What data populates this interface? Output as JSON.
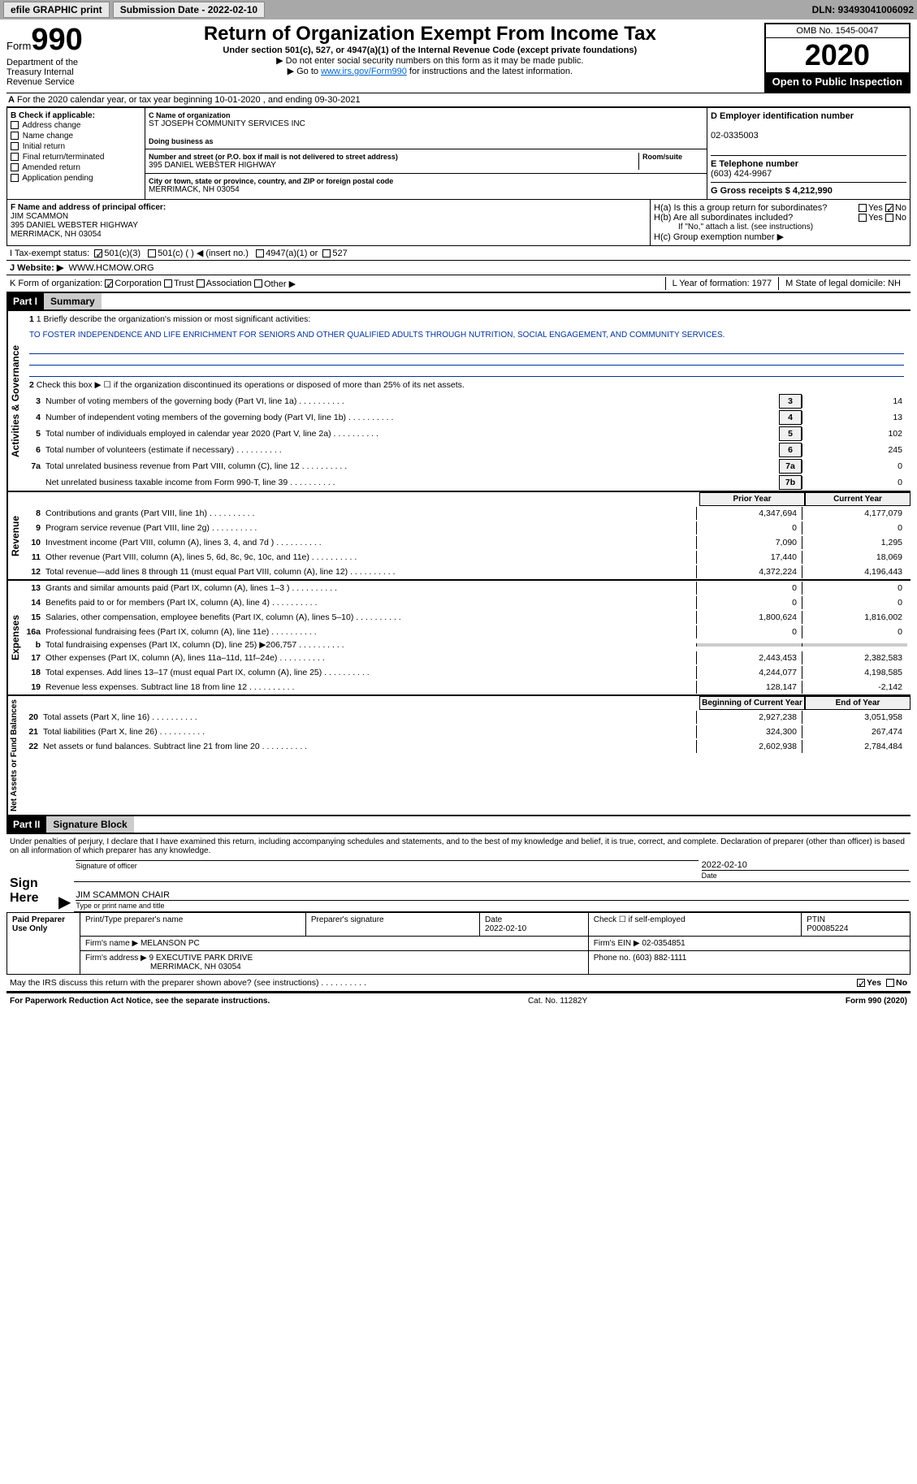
{
  "topbar": {
    "efile_label": "efile GRAPHIC print",
    "submission_label": "Submission Date - 2022-02-10",
    "dln_label": "DLN: 93493041006092"
  },
  "header": {
    "form_label": "Form",
    "form_number": "990",
    "title": "Return of Organization Exempt From Income Tax",
    "subtitle": "Under section 501(c), 527, or 4947(a)(1) of the Internal Revenue Code (except private foundations)",
    "instr1": "▶ Do not enter social security numbers on this form as it may be made public.",
    "instr2_prefix": "▶ Go to ",
    "instr2_link": "www.irs.gov/Form990",
    "instr2_suffix": " for instructions and the latest information.",
    "omb": "OMB No. 1545-0047",
    "year": "2020",
    "open_public": "Open to Public Inspection",
    "dept": "Department of the Treasury Internal Revenue Service"
  },
  "line_a": "For the 2020 calendar year, or tax year beginning 10-01-2020   , and ending 09-30-2021",
  "section_b": {
    "header": "B Check if applicable:",
    "items": [
      "Address change",
      "Name change",
      "Initial return",
      "Final return/terminated",
      "Amended return",
      "Application pending"
    ]
  },
  "section_c": {
    "name_label": "C Name of organization",
    "name": "ST JOSEPH COMMUNITY SERVICES INC",
    "dba_label": "Doing business as",
    "addr_label": "Number and street (or P.O. box if mail is not delivered to street address)",
    "room_label": "Room/suite",
    "addr": "395 DANIEL WEBSTER HIGHWAY",
    "city_label": "City or town, state or province, country, and ZIP or foreign postal code",
    "city": "MERRIMACK, NH  03054"
  },
  "section_d": {
    "label": "D Employer identification number",
    "value": "02-0335003"
  },
  "section_e": {
    "label": "E Telephone number",
    "value": "(603) 424-9967"
  },
  "section_g": {
    "label": "G Gross receipts $ 4,212,990"
  },
  "section_f": {
    "label": "F Name and address of principal officer:",
    "name": "JIM SCAMMON",
    "addr1": "395 DANIEL WEBSTER HIGHWAY",
    "addr2": "MERRIMACK, NH  03054"
  },
  "section_h": {
    "ha": "H(a)  Is this a group return for subordinates?",
    "hb": "H(b)  Are all subordinates included?",
    "hb_note": "If \"No,\" attach a list. (see instructions)",
    "hc": "H(c)  Group exemption number ▶",
    "yes": "Yes",
    "no": "No"
  },
  "line_i": {
    "label": "I    Tax-exempt status:",
    "opts": [
      "501(c)(3)",
      "501(c) (  ) ◀ (insert no.)",
      "4947(a)(1) or",
      "527"
    ]
  },
  "line_j": {
    "label": "J   Website: ▶",
    "value": "WWW.HCMOW.ORG"
  },
  "line_k": {
    "label": "K Form of organization:",
    "opts": [
      "Corporation",
      "Trust",
      "Association",
      "Other ▶"
    ]
  },
  "line_l": {
    "label": "L Year of formation: 1977"
  },
  "line_m": {
    "label": "M State of legal domicile: NH"
  },
  "part1": {
    "header": "Part I",
    "title": "Summary",
    "q1_label": "1  Briefly describe the organization's mission or most significant activities:",
    "q1_text": "TO FOSTER INDEPENDENCE AND LIFE ENRICHMENT FOR SENIORS AND OTHER QUALIFIED ADULTS THROUGH NUTRITION, SOCIAL ENGAGEMENT, AND COMMUNITY SERVICES.",
    "q2": "Check this box ▶ ☐  if the organization discontinued its operations or disposed of more than 25% of its net assets.",
    "sections": {
      "governance": "Activities & Governance",
      "revenue": "Revenue",
      "expenses": "Expenses",
      "netassets": "Net Assets or Fund Balances"
    },
    "simple_rows": [
      {
        "n": "3",
        "label": "Number of voting members of the governing body (Part VI, line 1a)",
        "box": "3",
        "val": "14"
      },
      {
        "n": "4",
        "label": "Number of independent voting members of the governing body (Part VI, line 1b)",
        "box": "4",
        "val": "13"
      },
      {
        "n": "5",
        "label": "Total number of individuals employed in calendar year 2020 (Part V, line 2a)",
        "box": "5",
        "val": "102"
      },
      {
        "n": "6",
        "label": "Total number of volunteers (estimate if necessary)",
        "box": "6",
        "val": "245"
      },
      {
        "n": "7a",
        "label": "Total unrelated business revenue from Part VIII, column (C), line 12",
        "box": "7a",
        "val": "0"
      },
      {
        "n": "",
        "label": "Net unrelated business taxable income from Form 990-T, line 39",
        "box": "7b",
        "val": "0"
      }
    ],
    "col_headers": {
      "prior": "Prior Year",
      "current": "Current Year",
      "begin": "Beginning of Current Year",
      "end": "End of Year"
    },
    "revenue_rows": [
      {
        "n": "8",
        "label": "Contributions and grants (Part VIII, line 1h)",
        "p": "4,347,694",
        "c": "4,177,079"
      },
      {
        "n": "9",
        "label": "Program service revenue (Part VIII, line 2g)",
        "p": "0",
        "c": "0"
      },
      {
        "n": "10",
        "label": "Investment income (Part VIII, column (A), lines 3, 4, and 7d )",
        "p": "7,090",
        "c": "1,295"
      },
      {
        "n": "11",
        "label": "Other revenue (Part VIII, column (A), lines 5, 6d, 8c, 9c, 10c, and 11e)",
        "p": "17,440",
        "c": "18,069"
      },
      {
        "n": "12",
        "label": "Total revenue—add lines 8 through 11 (must equal Part VIII, column (A), line 12)",
        "p": "4,372,224",
        "c": "4,196,443"
      }
    ],
    "expense_rows": [
      {
        "n": "13",
        "label": "Grants and similar amounts paid (Part IX, column (A), lines 1–3 )",
        "p": "0",
        "c": "0"
      },
      {
        "n": "14",
        "label": "Benefits paid to or for members (Part IX, column (A), line 4)",
        "p": "0",
        "c": "0"
      },
      {
        "n": "15",
        "label": "Salaries, other compensation, employee benefits (Part IX, column (A), lines 5–10)",
        "p": "1,800,624",
        "c": "1,816,002"
      },
      {
        "n": "16a",
        "label": "Professional fundraising fees (Part IX, column (A), line 11e)",
        "p": "0",
        "c": "0"
      },
      {
        "n": "b",
        "label": "Total fundraising expenses (Part IX, column (D), line 25) ▶206,757",
        "p": "",
        "c": "",
        "shaded": true
      },
      {
        "n": "17",
        "label": "Other expenses (Part IX, column (A), lines 11a–11d, 11f–24e)",
        "p": "2,443,453",
        "c": "2,382,583"
      },
      {
        "n": "18",
        "label": "Total expenses. Add lines 13–17 (must equal Part IX, column (A), line 25)",
        "p": "4,244,077",
        "c": "4,198,585"
      },
      {
        "n": "19",
        "label": "Revenue less expenses. Subtract line 18 from line 12",
        "p": "128,147",
        "c": "-2,142"
      }
    ],
    "asset_rows": [
      {
        "n": "20",
        "label": "Total assets (Part X, line 16)",
        "p": "2,927,238",
        "c": "3,051,958"
      },
      {
        "n": "21",
        "label": "Total liabilities (Part X, line 26)",
        "p": "324,300",
        "c": "267,474"
      },
      {
        "n": "22",
        "label": "Net assets or fund balances. Subtract line 21 from line 20",
        "p": "2,602,938",
        "c": "2,784,484"
      }
    ]
  },
  "part2": {
    "header": "Part II",
    "title": "Signature Block",
    "declaration": "Under penalties of perjury, I declare that I have examined this return, including accompanying schedules and statements, and to the best of my knowledge and belief, it is true, correct, and complete. Declaration of preparer (other than officer) is based on all information of which preparer has any knowledge."
  },
  "sign": {
    "label": "Sign Here",
    "sig_label": "Signature of officer",
    "date_label": "Date",
    "date": "2022-02-10",
    "name": "JIM SCAMMON CHAIR",
    "name_label": "Type or print name and title"
  },
  "preparer": {
    "label": "Paid Preparer Use Only",
    "headers": [
      "Print/Type preparer's name",
      "Preparer's signature",
      "Date",
      "Check ☐ if self-employed",
      "PTIN"
    ],
    "date": "2022-02-10",
    "ptin": "P00085224",
    "firm_label": "Firm's name   ▶",
    "firm_name": "MELANSON PC",
    "ein_label": "Firm's EIN ▶ 02-0354851",
    "addr_label": "Firm's address ▶",
    "addr": "9 EXECUTIVE PARK DRIVE",
    "addr2": "MERRIMACK, NH  03054",
    "phone_label": "Phone no. (603) 882-1111"
  },
  "discuss": {
    "label": "May the IRS discuss this return with the preparer shown above? (see instructions)",
    "yes": "Yes",
    "no": "No"
  },
  "footer": {
    "left": "For Paperwork Reduction Act Notice, see the separate instructions.",
    "center": "Cat. No. 11282Y",
    "right": "Form 990 (2020)"
  }
}
